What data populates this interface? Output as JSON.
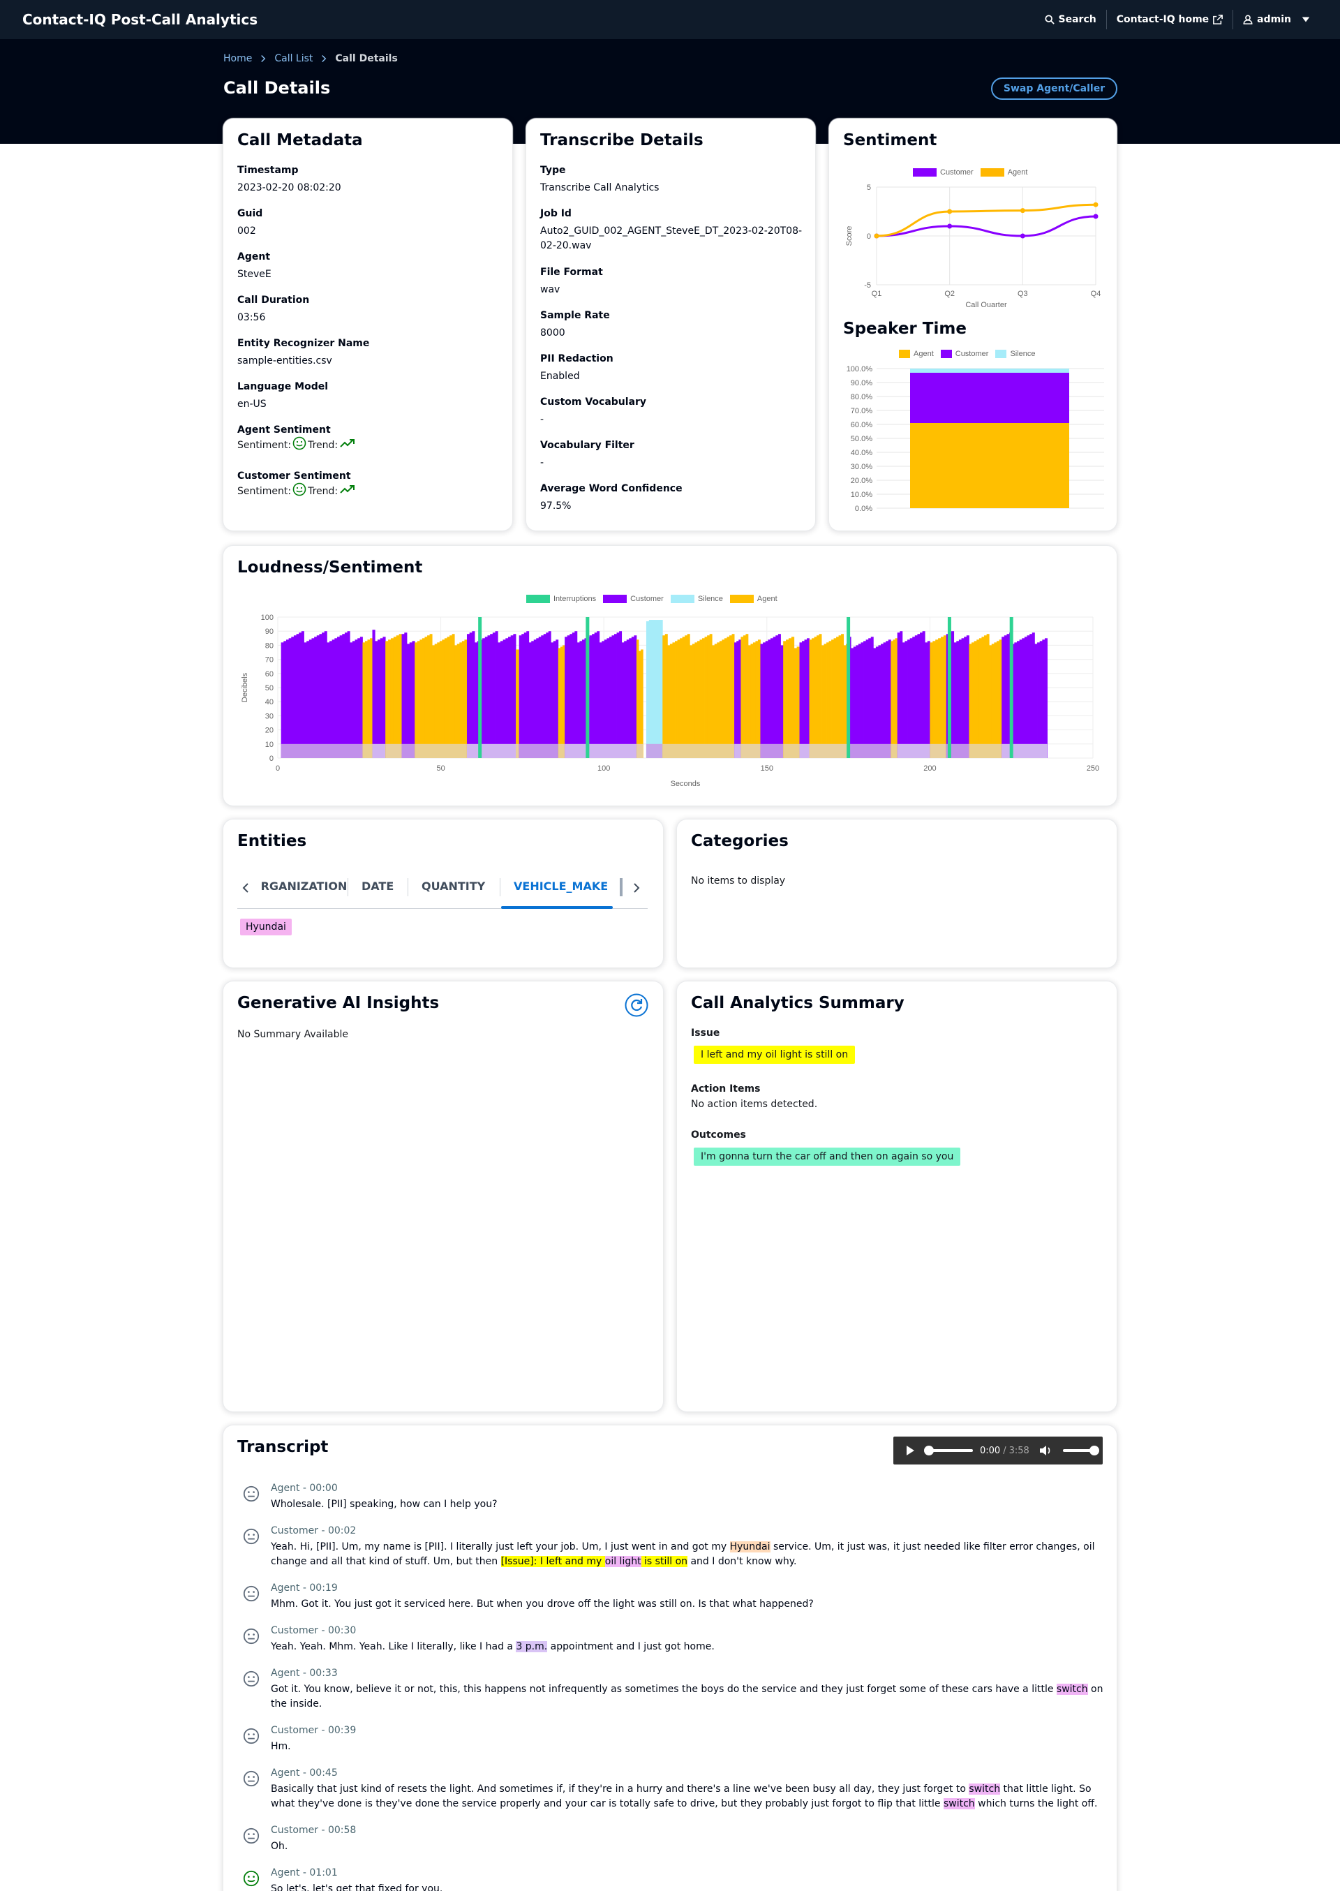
{
  "app": {
    "title": "Contact-IQ Post-Call Analytics"
  },
  "nav": {
    "search": "Search",
    "home": "Contact-IQ home",
    "user": "admin"
  },
  "breadcrumb": [
    "Home",
    "Call List",
    "Call Details"
  ],
  "page": {
    "title": "Call Details",
    "swap_button": "Swap Agent/Caller"
  },
  "metadata": {
    "title": "Call Metadata",
    "fields": [
      {
        "k": "Timestamp",
        "v": "2023-02-20 08:02:20"
      },
      {
        "k": "Guid",
        "v": "002"
      },
      {
        "k": "Agent",
        "v": "SteveE"
      },
      {
        "k": "Call Duration",
        "v": "03:56"
      },
      {
        "k": "Entity Recognizer Name",
        "v": "sample-entities.csv"
      },
      {
        "k": "Language Model",
        "v": "en-US"
      }
    ],
    "agent_sentiment": "Agent Sentiment",
    "customer_sentiment": "Customer Sentiment",
    "sentiment_label": "Sentiment:",
    "trend_label": "Trend:"
  },
  "transcribe": {
    "title": "Transcribe Details",
    "fields": [
      {
        "k": "Type",
        "v": "Transcribe Call Analytics"
      },
      {
        "k": "Job Id",
        "v": "Auto2_GUID_002_AGENT_SteveE_DT_2023-02-20T08-02-20.wav"
      },
      {
        "k": "File Format",
        "v": "wav"
      },
      {
        "k": "Sample Rate",
        "v": "8000"
      },
      {
        "k": "PII Redaction",
        "v": "Enabled"
      },
      {
        "k": "Custom Vocabulary",
        "v": "-"
      },
      {
        "k": "Vocabulary Filter",
        "v": "-"
      },
      {
        "k": "Average Word Confidence",
        "v": "97.5%"
      }
    ]
  },
  "sentiment_chart": {
    "title": "Sentiment",
    "legend": [
      "Customer",
      "Agent"
    ],
    "colors": {
      "Customer": "#8800ff",
      "Agent": "#ffb700"
    }
  },
  "speaker_time": {
    "title": "Speaker Time",
    "legend": [
      "Agent",
      "Customer",
      "Silence"
    ],
    "colors": {
      "Agent": "#ffbf00",
      "Customer": "#8800ff",
      "Silence": "#a6ecf9"
    }
  },
  "loudness": {
    "title": "Loudness/Sentiment",
    "legend": [
      "Interruptions",
      "Customer",
      "Silence",
      "Agent"
    ],
    "colors": {
      "Interruptions": "#2ed392",
      "Customer": "#8800ff",
      "Silence": "#a6ecf9",
      "Agent": "#ffbf00"
    }
  },
  "chart_data": [
    {
      "type": "line",
      "x": [
        "Q1",
        "Q2",
        "Q3",
        "Q4"
      ],
      "series": [
        {
          "name": "Customer",
          "values": [
            0,
            1,
            0,
            2
          ]
        },
        {
          "name": "Agent",
          "values": [
            0,
            2.5,
            2.6,
            3.2
          ]
        }
      ],
      "xlabel": "Call Quarter",
      "ylabel": "Score",
      "ylim": [
        -5,
        5
      ],
      "yticks": [
        5,
        0,
        -5
      ],
      "grid": true,
      "legend": "top"
    },
    {
      "type": "bar",
      "stacked": true,
      "categories": [
        ""
      ],
      "series": [
        {
          "name": "Agent",
          "values": [
            61
          ]
        },
        {
          "name": "Customer",
          "values": [
            36
          ]
        },
        {
          "name": "Silence",
          "values": [
            3
          ]
        }
      ],
      "ylim": [
        0,
        100
      ],
      "yticks": [
        "100.0%",
        "90.0%",
        "80.0%",
        "70.0%",
        "60.0%",
        "50.0%",
        "40.0%",
        "30.0%",
        "20.0%",
        "10.0%",
        "0.0%"
      ],
      "legend": "top"
    },
    {
      "type": "bar",
      "xlabel": "Seconds",
      "ylabel": "Decibels",
      "xlim": [
        0,
        250
      ],
      "ylim": [
        0,
        100
      ],
      "xticks": [
        0,
        50,
        100,
        150,
        200,
        250
      ],
      "yticks": [
        100,
        90,
        80,
        70,
        60,
        50,
        40,
        30,
        20,
        10,
        0
      ],
      "segments": [
        {
          "speaker": "Customer",
          "start": 1,
          "end": 26,
          "level": 86
        },
        {
          "speaker": "Agent",
          "start": 26,
          "end": 29,
          "level": 82
        },
        {
          "speaker": "Customer",
          "start": 29,
          "end": 33,
          "level": 87
        },
        {
          "speaker": "Agent",
          "start": 33,
          "end": 38,
          "level": 84
        },
        {
          "speaker": "Customer",
          "start": 38,
          "end": 42,
          "level": 85
        },
        {
          "speaker": "Agent",
          "start": 42,
          "end": 58,
          "level": 84
        },
        {
          "speaker": "Customer",
          "start": 58,
          "end": 73,
          "level": 86
        },
        {
          "speaker": "Agent",
          "start": 73,
          "end": 74,
          "level": 80
        },
        {
          "speaker": "Customer",
          "start": 74,
          "end": 86,
          "level": 86
        },
        {
          "speaker": "Agent",
          "start": 86,
          "end": 88,
          "level": 82
        },
        {
          "speaker": "Customer",
          "start": 88,
          "end": 110,
          "level": 86
        },
        {
          "speaker": "Agent",
          "start": 110,
          "end": 112,
          "level": 80
        },
        {
          "speaker": "Silence",
          "start": 113,
          "end": 118,
          "level": 98
        },
        {
          "speaker": "Agent",
          "start": 118,
          "end": 140,
          "level": 84
        },
        {
          "speaker": "Customer",
          "start": 140,
          "end": 142,
          "level": 84
        },
        {
          "speaker": "Agent",
          "start": 142,
          "end": 148,
          "level": 84
        },
        {
          "speaker": "Customer",
          "start": 148,
          "end": 155,
          "level": 84
        },
        {
          "speaker": "Agent",
          "start": 155,
          "end": 160,
          "level": 82
        },
        {
          "speaker": "Customer",
          "start": 160,
          "end": 163,
          "level": 86
        },
        {
          "speaker": "Agent",
          "start": 163,
          "end": 175,
          "level": 84
        },
        {
          "speaker": "Customer",
          "start": 175,
          "end": 188,
          "level": 82
        },
        {
          "speaker": "Agent",
          "start": 188,
          "end": 190,
          "level": 84
        },
        {
          "speaker": "Customer",
          "start": 190,
          "end": 200,
          "level": 86
        },
        {
          "speaker": "Agent",
          "start": 200,
          "end": 205,
          "level": 84
        },
        {
          "speaker": "Customer",
          "start": 205,
          "end": 212,
          "level": 86
        },
        {
          "speaker": "Agent",
          "start": 212,
          "end": 222,
          "level": 84
        },
        {
          "speaker": "Customer",
          "start": 222,
          "end": 236,
          "level": 85
        }
      ],
      "interruptions": [
        62,
        95,
        175,
        206,
        225
      ],
      "legend": "top"
    }
  ],
  "entities": {
    "title": "Entities",
    "tabs": [
      "ORGANIZATION",
      "DATE",
      "QUANTITY",
      "VEHICLE_MAKE"
    ],
    "active_tab": "VEHICLE_MAKE",
    "items": [
      "Hyundai"
    ]
  },
  "categories": {
    "title": "Categories",
    "empty": "No items to display"
  },
  "genai": {
    "title": "Generative AI Insights",
    "empty": "No Summary Available"
  },
  "summary": {
    "title": "Call Analytics Summary",
    "issue_label": "Issue",
    "issue": "I left and my oil light is still on",
    "action_label": "Action Items",
    "action": "No action items detected.",
    "outcomes_label": "Outcomes",
    "outcome": "I'm gonna turn the car off and then on again so you"
  },
  "transcript": {
    "title": "Transcript",
    "player": {
      "current": "0:00",
      "total": "3:58"
    },
    "turns": [
      {
        "who": "Agent - 00:00",
        "sent": "neutral",
        "parts": [
          [
            "",
            "Wholesale. [PII] speaking, how can I help you?"
          ]
        ]
      },
      {
        "who": "Customer - 00:02",
        "sent": "neutral",
        "parts": [
          [
            "",
            "Yeah. Hi, [PII]. Um, my name is [PII]. I literally just left your job. Um, I just went in and got my "
          ],
          [
            "peach",
            "Hyundai"
          ],
          [
            "",
            " service. Um, it just was, it just needed like filter error changes, oil change and all that kind of stuff. Um, but then "
          ],
          [
            "yellow",
            "[Issue]: I left and my "
          ],
          [
            "pink",
            "oil light"
          ],
          [
            "yellow",
            " is still on"
          ],
          [
            "",
            " and I don't know why."
          ]
        ]
      },
      {
        "who": "Agent - 00:19",
        "sent": "neutral",
        "parts": [
          [
            "",
            "Mhm. Got it. You just got it serviced here. But when you drove off the light was still on. Is that what happened?"
          ]
        ]
      },
      {
        "who": "Customer - 00:30",
        "sent": "neutral",
        "parts": [
          [
            "",
            "Yeah. Yeah. Mhm. Yeah. Like I literally, like I had a "
          ],
          [
            "lav",
            "3 p.m."
          ],
          [
            "",
            " appointment and I just got home."
          ]
        ]
      },
      {
        "who": "Agent - 00:33",
        "sent": "neutral",
        "parts": [
          [
            "",
            "Got it. You know, believe it or not, this, this happens not infrequently as sometimes the boys do the service and they just forget some of these cars have a little "
          ],
          [
            "pink",
            "switch"
          ],
          [
            "",
            " on the inside."
          ]
        ]
      },
      {
        "who": "Customer - 00:39",
        "sent": "neutral",
        "parts": [
          [
            "",
            "Hm."
          ]
        ]
      },
      {
        "who": "Agent - 00:45",
        "sent": "neutral",
        "parts": [
          [
            "",
            "Basically that just kind of resets the light. And sometimes if, if they're in a hurry and there's a line we've been busy all day, they just forget to "
          ],
          [
            "pink",
            "switch"
          ],
          [
            "",
            " that little light. So what they've done is they've done the service properly and your car is totally safe to drive, but they probably just forgot to flip that little "
          ],
          [
            "pink",
            "switch"
          ],
          [
            "",
            " which turns the light off."
          ]
        ]
      },
      {
        "who": "Customer - 00:58",
        "sent": "neutral",
        "parts": [
          [
            "",
            "Oh."
          ]
        ]
      },
      {
        "who": "Agent - 01:01",
        "sent": "positive",
        "parts": [
          [
            "",
            "So let's, let's get that fixed for you."
          ]
        ]
      }
    ]
  }
}
